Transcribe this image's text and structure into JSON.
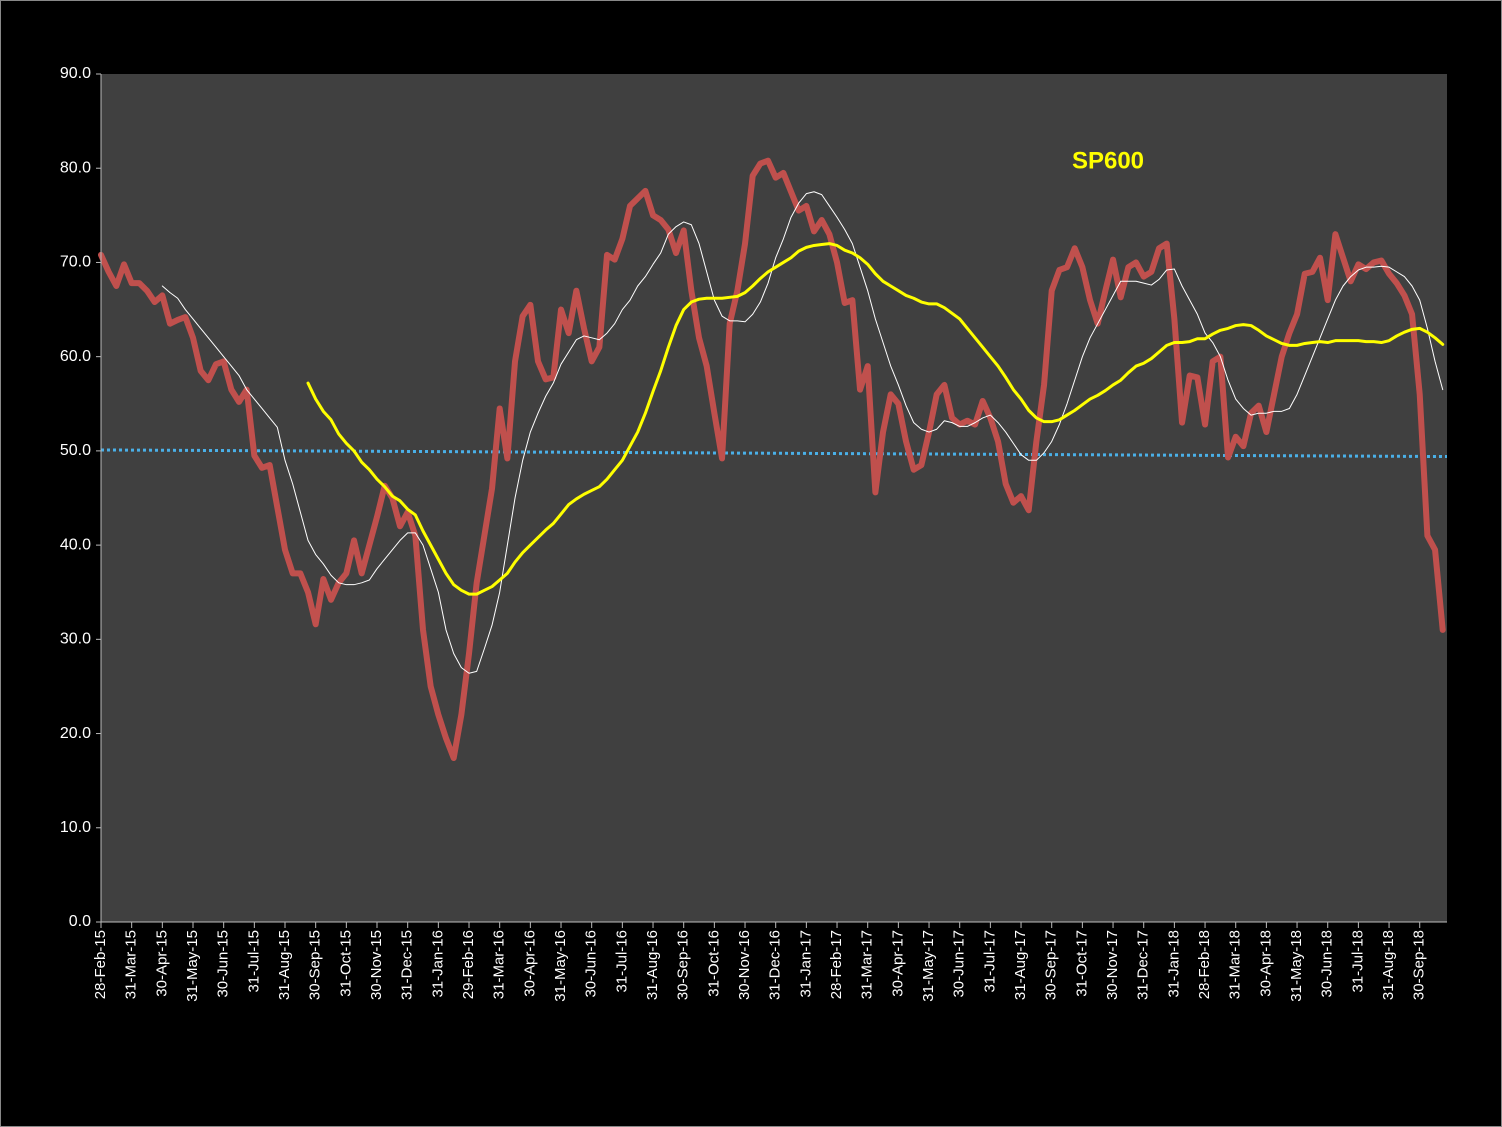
{
  "chart_data": {
    "type": "line",
    "annotation": {
      "text": "SP600",
      "color": "#ffff00"
    },
    "categories": [
      "28-Feb-15",
      null,
      null,
      null,
      "31-Mar-15",
      null,
      null,
      null,
      "30-Apr-15",
      null,
      null,
      null,
      "31-May-15",
      null,
      null,
      null,
      "30-Jun-15",
      null,
      null,
      null,
      "31-Jul-15",
      null,
      null,
      null,
      "31-Aug-15",
      null,
      null,
      null,
      "30-Sep-15",
      null,
      null,
      null,
      "31-Oct-15",
      null,
      null,
      null,
      "30-Nov-15",
      null,
      null,
      null,
      "31-Dec-15",
      null,
      null,
      null,
      "31-Jan-16",
      null,
      null,
      null,
      "29-Feb-16",
      null,
      null,
      null,
      "31-Mar-16",
      null,
      null,
      null,
      "30-Apr-16",
      null,
      null,
      null,
      "31-May-16",
      null,
      null,
      null,
      "30-Jun-16",
      null,
      null,
      null,
      "31-Jul-16",
      null,
      null,
      null,
      "31-Aug-16",
      null,
      null,
      null,
      "30-Sep-16",
      null,
      null,
      null,
      "31-Oct-16",
      null,
      null,
      null,
      "30-Nov-16",
      null,
      null,
      null,
      "31-Dec-16",
      null,
      null,
      null,
      "31-Jan-17",
      null,
      null,
      null,
      "28-Feb-17",
      null,
      null,
      null,
      "31-Mar-17",
      null,
      null,
      null,
      "30-Apr-17",
      null,
      null,
      null,
      "31-May-17",
      null,
      null,
      null,
      "30-Jun-17",
      null,
      null,
      null,
      "31-Jul-17",
      null,
      null,
      null,
      "31-Aug-17",
      null,
      null,
      null,
      "30-Sep-17",
      null,
      null,
      null,
      "31-Oct-17",
      null,
      null,
      null,
      "30-Nov-17",
      null,
      null,
      null,
      "31-Dec-17",
      null,
      null,
      null,
      "31-Jan-18",
      null,
      null,
      null,
      "28-Feb-18",
      null,
      null,
      null,
      "31-Mar-18",
      null,
      null,
      null,
      "30-Apr-18",
      null,
      null,
      null,
      "31-May-18",
      null,
      null,
      null,
      "30-Jun-18",
      null,
      null,
      null,
      "31-Jul-18",
      null,
      null,
      null,
      "31-Aug-18",
      null,
      null,
      null,
      "30-Sep-18",
      null,
      null,
      null
    ],
    "series": [
      {
        "color": "#c0504d",
        "width": 6,
        "values": [
          70.8,
          69,
          67.5,
          69.8,
          67.8,
          67.8,
          67,
          65.8,
          66.5,
          63.5,
          63.9,
          64.2,
          62,
          58.5,
          57.5,
          59.2,
          59.5,
          56.5,
          55.2,
          56.5,
          49.5,
          48.2,
          48.5,
          44,
          39.5,
          37,
          37,
          35,
          31.6,
          36.4,
          34.2,
          36,
          37,
          40.5,
          37,
          40,
          43,
          46.3,
          45,
          42,
          43.5,
          41,
          31,
          25,
          22,
          19.5,
          17.4,
          22,
          28.5,
          36,
          41,
          46,
          54.5,
          49.2,
          59.5,
          64.3,
          65.5,
          59.5,
          57.6,
          57.8,
          65,
          62.5,
          67,
          63,
          59.5,
          61,
          70.8,
          70.3,
          72.5,
          76,
          76.8,
          77.6,
          75,
          74.5,
          73.5,
          71,
          73.4,
          67,
          62,
          59,
          54,
          49.2,
          63.5,
          67,
          72,
          79.2,
          80.5,
          80.8,
          79,
          79.5,
          77.5,
          75.5,
          76,
          73.3,
          74.5,
          73,
          70,
          65.7,
          66,
          56.5,
          59,
          45.6,
          52,
          56,
          55,
          51,
          48,
          48.5,
          52,
          56,
          57,
          53.5,
          52.8,
          53.2,
          52.8,
          55.3,
          53.5,
          51,
          46.5,
          44.5,
          45.2,
          43.7,
          51,
          57,
          67,
          69.2,
          69.5,
          71.5,
          69.5,
          66,
          63.5,
          67,
          70.3,
          66.3,
          69.5,
          70,
          68.5,
          69,
          71.5,
          72,
          64,
          53,
          58,
          57.8,
          52.8,
          59.5,
          60,
          49.3,
          51.5,
          50.5,
          54,
          54.8,
          52,
          56,
          60,
          62.5,
          64.5,
          68.8,
          69,
          70.5,
          66,
          73,
          70.5,
          68,
          69.8,
          69.3,
          70,
          70.2,
          68.8,
          67.8,
          66.5,
          64.5,
          56,
          41,
          39.5,
          31
        ]
      },
      {
        "color": "#ffffff",
        "width": 1,
        "values": [
          null,
          null,
          null,
          null,
          null,
          null,
          null,
          null,
          67.5,
          66.8,
          66.2,
          65,
          64,
          63,
          62,
          61,
          60,
          59,
          58,
          56.5,
          55.5,
          54.5,
          53.5,
          52.5,
          49,
          46.5,
          43.5,
          40.5,
          39,
          38,
          36.8,
          36,
          35.8,
          35.8,
          36,
          36.3,
          37.5,
          38.5,
          39.5,
          40.5,
          41.3,
          41.3,
          40,
          37.5,
          35,
          31,
          28.5,
          27,
          26.4,
          26.6,
          29,
          31.5,
          35,
          40,
          45,
          49,
          52,
          54,
          55.8,
          57.2,
          59.2,
          60.5,
          61.8,
          62.2,
          62,
          61.8,
          62.5,
          63.5,
          65,
          66,
          67.5,
          68.5,
          69.8,
          71,
          73,
          73.8,
          74.3,
          74,
          72,
          69,
          66,
          64.3,
          63.8,
          63.8,
          63.7,
          64.5,
          65.8,
          67.8,
          70.5,
          72.5,
          74.8,
          76.3,
          77.3,
          77.5,
          77.2,
          76,
          74.8,
          73.5,
          72,
          69.5,
          67,
          64,
          61.5,
          59,
          57,
          54.8,
          53,
          52.3,
          52,
          52.3,
          53.2,
          53,
          52.6,
          52.6,
          53,
          53.5,
          53.8,
          53,
          52,
          50.8,
          49.6,
          49,
          49,
          49.8,
          51,
          52.8,
          55,
          57.5,
          60,
          62,
          63.5,
          65,
          66.5,
          68,
          68,
          68,
          67.8,
          67.6,
          68.2,
          69.2,
          69.3,
          67.5,
          66,
          64.5,
          62.5,
          61.5,
          60,
          57.5,
          55.5,
          54.5,
          53.8,
          54,
          54,
          54.2,
          54.2,
          54.5,
          56,
          58,
          60,
          62,
          64,
          66,
          67.5,
          68.5,
          69.2,
          69.5,
          69.5,
          69.6,
          69.5,
          69,
          68.5,
          67.5,
          66,
          63,
          59.5,
          56.5
        ]
      },
      {
        "color": "#ffff00",
        "width": 3,
        "values": [
          null,
          null,
          null,
          null,
          null,
          null,
          null,
          null,
          null,
          null,
          null,
          null,
          null,
          null,
          null,
          null,
          null,
          null,
          null,
          null,
          null,
          null,
          null,
          null,
          null,
          null,
          null,
          57.2,
          55.5,
          54.2,
          53.3,
          51.8,
          50.8,
          50,
          48.8,
          48,
          47,
          46.2,
          45.2,
          44.7,
          43.8,
          43.2,
          41.5,
          40,
          38.5,
          37,
          35.8,
          35.2,
          34.8,
          34.8,
          35.2,
          35.6,
          36.3,
          37,
          38.2,
          39.2,
          40,
          40.8,
          41.6,
          42.3,
          43.3,
          44.3,
          44.9,
          45.4,
          45.8,
          46.2,
          47,
          48,
          49,
          50.5,
          52,
          54,
          56.3,
          58.5,
          61,
          63.3,
          65,
          65.8,
          66.1,
          66.2,
          66.2,
          66.2,
          66.3,
          66.4,
          66.8,
          67.5,
          68.3,
          69,
          69.5,
          70,
          70.5,
          71.2,
          71.6,
          71.8,
          71.9,
          72,
          71.8,
          71.3,
          71,
          70.5,
          69.8,
          68.8,
          68,
          67.5,
          67,
          66.5,
          66.2,
          65.8,
          65.6,
          65.6,
          65.2,
          64.6,
          64,
          63,
          62,
          61,
          60,
          59,
          57.8,
          56.5,
          55.5,
          54.3,
          53.5,
          53.1,
          53.1,
          53.3,
          53.8,
          54.3,
          54.9,
          55.5,
          55.9,
          56.4,
          57,
          57.5,
          58.3,
          59,
          59.3,
          59.8,
          60.5,
          61.2,
          61.5,
          61.5,
          61.6,
          61.9,
          61.9,
          62.4,
          62.8,
          63,
          63.3,
          63.4,
          63.3,
          62.8,
          62.2,
          61.8,
          61.4,
          61.2,
          61.2,
          61.4,
          61.5,
          61.6,
          61.5,
          61.7,
          61.7,
          61.7,
          61.7,
          61.6,
          61.6,
          61.5,
          61.7,
          62.2,
          62.6,
          62.9,
          63,
          62.6,
          62,
          61.3
        ]
      }
    ],
    "trendline": {
      "color": "#4ab0e8",
      "start": 50.1,
      "end": 49.4,
      "dotted": true
    },
    "ylim": [
      0,
      90
    ],
    "yticks": [
      {
        "value": 0,
        "label": "0.0"
      },
      {
        "value": 10,
        "label": "10.0"
      },
      {
        "value": 20,
        "label": "20.0"
      },
      {
        "value": 30,
        "label": "30.0"
      },
      {
        "value": 40,
        "label": "40.0"
      },
      {
        "value": 50,
        "label": "50.0"
      },
      {
        "value": 60,
        "label": "60.0"
      },
      {
        "value": 70,
        "label": "70.0"
      },
      {
        "value": 80,
        "label": "80.0"
      },
      {
        "value": 90,
        "label": "90.0"
      }
    ],
    "grid": false,
    "plot_background": "#404040"
  }
}
